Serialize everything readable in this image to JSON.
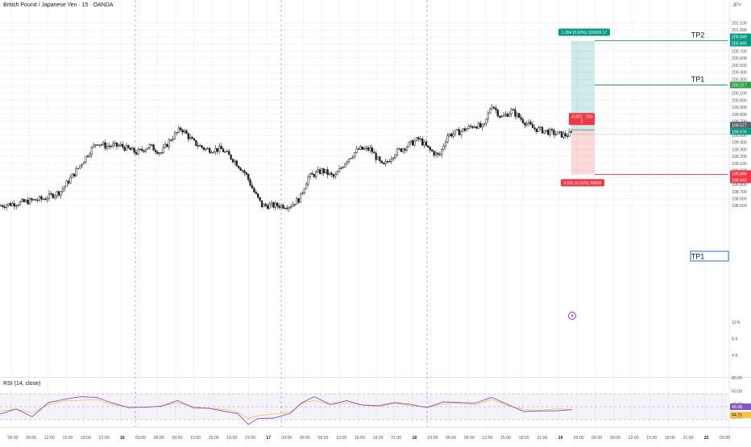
{
  "header": {
    "symbol_title": "British Pound / Japanese Yen · 15 · OANDA",
    "currency": "JPY"
  },
  "price_axis": {
    "ticks": [
      "201.100",
      "201.000",
      "200.900",
      "200.800",
      "200.700",
      "200.600",
      "200.500",
      "200.400",
      "200.300",
      "200.200",
      "200.100",
      "200.000",
      "199.900",
      "199.800",
      "199.700",
      "199.600",
      "199.500",
      "199.400",
      "199.300",
      "199.200",
      "199.100",
      "199.000",
      "198.900",
      "198.800",
      "198.700",
      "198.600",
      "198.500"
    ],
    "volume_ticks": [
      "12 K",
      "8 K",
      "4 K"
    ],
    "rsi_ticks": [
      "80.00",
      "60.00",
      "40.00",
      "20.00"
    ],
    "badges": {
      "tp2_a": "200.849",
      "tp2_b": "200.845",
      "tp1": "200.217",
      "current_a": "199.577",
      "current_b": "199.576",
      "sl_a": "198.946",
      "sl_b": "198.943",
      "rsi_a": "49.98",
      "rsi_b": "44.71"
    }
  },
  "time_axis": [
    "06:00",
    "09:00",
    "12:00",
    "15:00",
    "18:00",
    "21:00",
    "16",
    "03:00",
    "06:00",
    "09:00",
    "12:00",
    "15:00",
    "18:00",
    "21:00",
    "17",
    "03:00",
    "06:00",
    "09:00",
    "12:00",
    "15:00",
    "18:00",
    "21:00",
    "18",
    "03:00",
    "06:00",
    "09:00",
    "12:00",
    "15:00",
    "18:00",
    "21:00",
    "19",
    "03:00",
    "06:00",
    "09:00",
    "12:00",
    "15:00",
    "18:00",
    "21:00",
    "22",
    "03:00"
  ],
  "position": {
    "target_label": "1.264 (0.63%) 100003.17",
    "stop_label": "0.631 (0.32%) 99000",
    "center_label_1": "-0.001 · 316",
    "center_label_2": "2"
  },
  "annotations": {
    "tp2": "TP2",
    "tp1_upper": "TP1",
    "tp1_lower": "TP1"
  },
  "indicator": {
    "rsi_title": "RSI (14, close)"
  },
  "colors": {
    "up": "#26a69a",
    "down": "#ef5350",
    "candle": "#1f1f1f",
    "rsi": "#7e57c2",
    "rsi_ma": "#f5c242",
    "tp_line": "#2e9e44",
    "sl_line": "#e0314b",
    "flash": "#9c27b0"
  },
  "chart_data": {
    "type": "candlestick",
    "instrument": "British Pound / Japanese Yen",
    "interval": "15",
    "source": "OANDA",
    "y_range": [
      198.5,
      201.15
    ],
    "levels": {
      "tp2": 200.847,
      "tp1": 200.217,
      "entry": 199.577,
      "stop": 198.945
    },
    "close_path": [
      {
        "t": 0,
        "p": 198.5
      },
      {
        "t": 30,
        "p": 198.55
      },
      {
        "t": 55,
        "p": 198.6
      },
      {
        "t": 75,
        "p": 198.7
      },
      {
        "t": 95,
        "p": 199.0
      },
      {
        "t": 110,
        "p": 199.25
      },
      {
        "t": 120,
        "p": 199.4
      },
      {
        "t": 130,
        "p": 199.35
      },
      {
        "t": 150,
        "p": 199.35
      },
      {
        "t": 170,
        "p": 199.25
      },
      {
        "t": 185,
        "p": 199.35
      },
      {
        "t": 200,
        "p": 199.25
      },
      {
        "t": 212,
        "p": 199.45
      },
      {
        "t": 225,
        "p": 199.6
      },
      {
        "t": 240,
        "p": 199.4
      },
      {
        "t": 255,
        "p": 199.3
      },
      {
        "t": 275,
        "p": 199.3
      },
      {
        "t": 290,
        "p": 199.15
      },
      {
        "t": 305,
        "p": 198.95
      },
      {
        "t": 315,
        "p": 198.7
      },
      {
        "t": 325,
        "p": 198.5
      },
      {
        "t": 340,
        "p": 198.5
      },
      {
        "t": 360,
        "p": 198.5
      },
      {
        "t": 372,
        "p": 198.6
      },
      {
        "t": 382,
        "p": 198.9
      },
      {
        "t": 400,
        "p": 199.0
      },
      {
        "t": 415,
        "p": 198.9
      },
      {
        "t": 430,
        "p": 199.15
      },
      {
        "t": 445,
        "p": 199.3
      },
      {
        "t": 460,
        "p": 199.3
      },
      {
        "t": 475,
        "p": 199.05
      },
      {
        "t": 490,
        "p": 199.25
      },
      {
        "t": 505,
        "p": 199.35
      },
      {
        "t": 520,
        "p": 199.45
      },
      {
        "t": 532,
        "p": 199.3
      },
      {
        "t": 545,
        "p": 199.2
      },
      {
        "t": 555,
        "p": 199.5
      },
      {
        "t": 570,
        "p": 199.55
      },
      {
        "t": 590,
        "p": 199.65
      },
      {
        "t": 600,
        "p": 199.6
      },
      {
        "t": 610,
        "p": 199.95
      },
      {
        "t": 622,
        "p": 199.75
      },
      {
        "t": 635,
        "p": 199.85
      },
      {
        "t": 650,
        "p": 199.7
      },
      {
        "t": 662,
        "p": 199.6
      },
      {
        "t": 680,
        "p": 199.55
      },
      {
        "t": 700,
        "p": 199.5
      },
      {
        "t": 710,
        "p": 199.52
      }
    ],
    "rsi": {
      "range": [
        20,
        80
      ],
      "bands": [
        70,
        30
      ],
      "points": [
        {
          "t": 0,
          "v": 40
        },
        {
          "t": 20,
          "v": 45
        },
        {
          "t": 40,
          "v": 36
        },
        {
          "t": 60,
          "v": 55
        },
        {
          "t": 80,
          "v": 63
        },
        {
          "t": 100,
          "v": 64
        },
        {
          "t": 120,
          "v": 66
        },
        {
          "t": 140,
          "v": 54
        },
        {
          "t": 160,
          "v": 50
        },
        {
          "t": 180,
          "v": 48
        },
        {
          "t": 200,
          "v": 52
        },
        {
          "t": 220,
          "v": 58
        },
        {
          "t": 240,
          "v": 50
        },
        {
          "t": 260,
          "v": 46
        },
        {
          "t": 280,
          "v": 44
        },
        {
          "t": 295,
          "v": 38
        },
        {
          "t": 308,
          "v": 24
        },
        {
          "t": 320,
          "v": 30
        },
        {
          "t": 340,
          "v": 34
        },
        {
          "t": 360,
          "v": 38
        },
        {
          "t": 375,
          "v": 58
        },
        {
          "t": 390,
          "v": 64
        },
        {
          "t": 410,
          "v": 55
        },
        {
          "t": 430,
          "v": 58
        },
        {
          "t": 450,
          "v": 54
        },
        {
          "t": 470,
          "v": 50
        },
        {
          "t": 490,
          "v": 58
        },
        {
          "t": 510,
          "v": 52
        },
        {
          "t": 530,
          "v": 50
        },
        {
          "t": 550,
          "v": 56
        },
        {
          "t": 570,
          "v": 58
        },
        {
          "t": 590,
          "v": 54
        },
        {
          "t": 610,
          "v": 66
        },
        {
          "t": 630,
          "v": 52
        },
        {
          "t": 650,
          "v": 44
        },
        {
          "t": 670,
          "v": 42
        },
        {
          "t": 690,
          "v": 45
        },
        {
          "t": 710,
          "v": 44
        }
      ]
    }
  }
}
